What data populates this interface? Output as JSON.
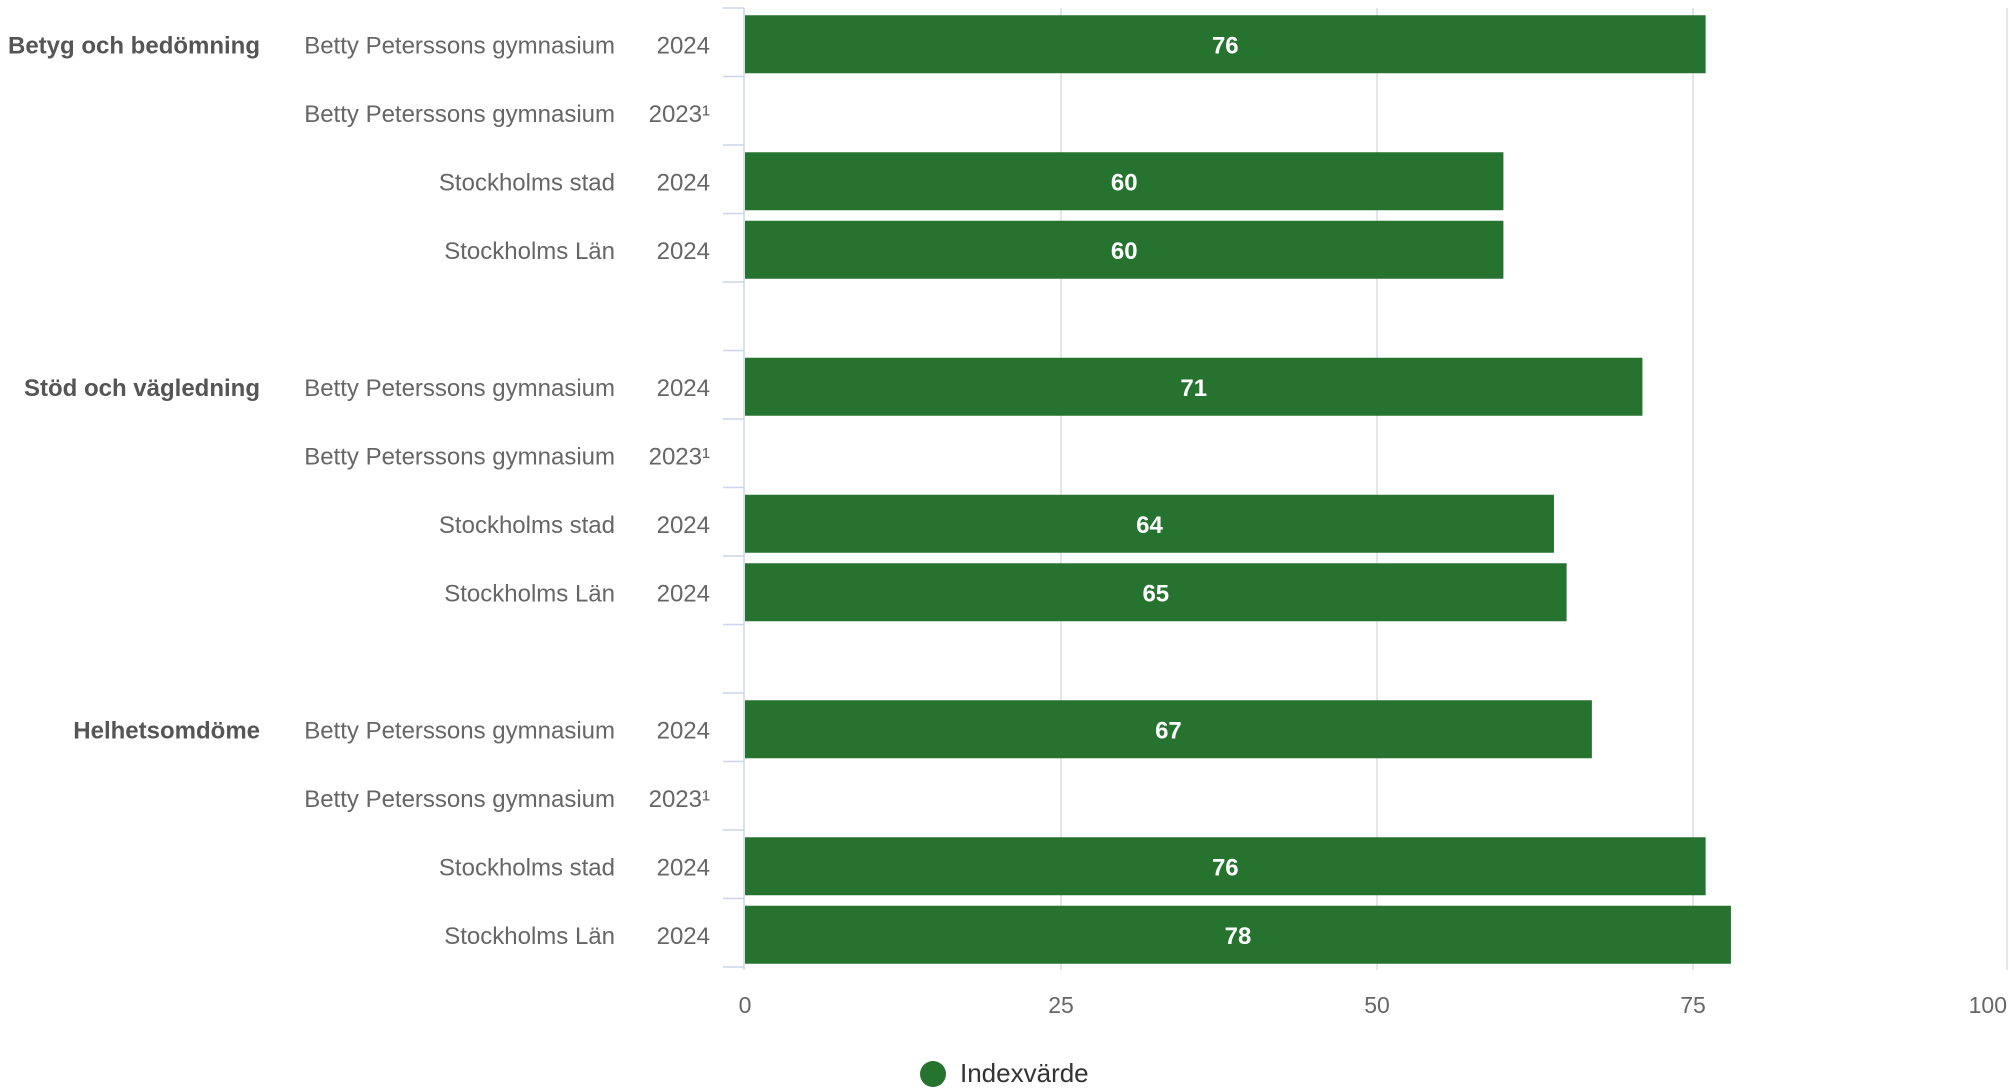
{
  "colors": {
    "bar": "#267330",
    "grid": "#dadde3",
    "axis_tick": "#ccd6eb",
    "category_text": "#555555",
    "label_text": "#666666",
    "value_text": "#ffffff"
  },
  "chart_data": {
    "type": "bar",
    "orientation": "horizontal",
    "xlim": [
      0,
      100
    ],
    "x_ticks": [
      0,
      25,
      50,
      75,
      100
    ],
    "grid": true,
    "legend_position": "bottom-center",
    "groups": [
      {
        "name": "Betyg och bedömning",
        "rows": [
          {
            "entity": "Betty Peterssons gymnasium",
            "year": "2024",
            "value": 76
          },
          {
            "entity": "Betty Peterssons gymnasium",
            "year": "2023¹",
            "value": null
          },
          {
            "entity": "Stockholms stad",
            "year": "2024",
            "value": 60
          },
          {
            "entity": "Stockholms Län",
            "year": "2024",
            "value": 60
          }
        ]
      },
      {
        "name": "Stöd och vägledning",
        "rows": [
          {
            "entity": "Betty Peterssons gymnasium",
            "year": "2024",
            "value": 71
          },
          {
            "entity": "Betty Peterssons gymnasium",
            "year": "2023¹",
            "value": null
          },
          {
            "entity": "Stockholms stad",
            "year": "2024",
            "value": 64
          },
          {
            "entity": "Stockholms Län",
            "year": "2024",
            "value": 65
          }
        ]
      },
      {
        "name": "Helhetsomdöme",
        "rows": [
          {
            "entity": "Betty Peterssons gymnasium",
            "year": "2024",
            "value": 67
          },
          {
            "entity": "Betty Peterssons gymnasium",
            "year": "2023¹",
            "value": null
          },
          {
            "entity": "Stockholms stad",
            "year": "2024",
            "value": 76
          },
          {
            "entity": "Stockholms Län",
            "year": "2024",
            "value": 78
          }
        ]
      }
    ],
    "series": [
      {
        "name": "Indexvärde"
      }
    ]
  },
  "legend": {
    "label": "Indexvärde",
    "icon": "circle-marker"
  }
}
